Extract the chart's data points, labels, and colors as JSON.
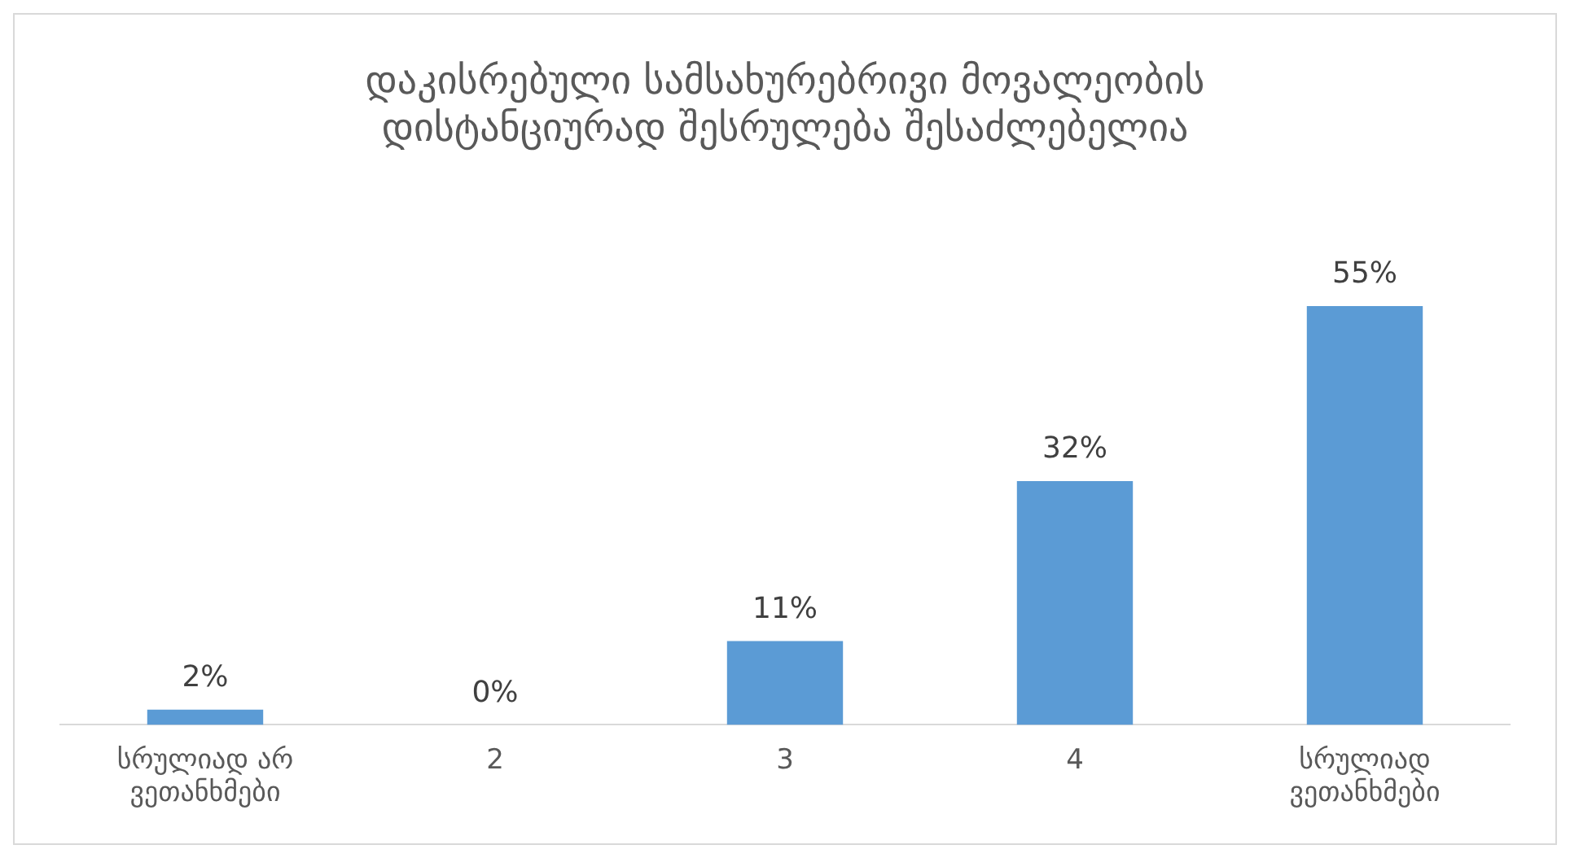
{
  "chart_data": {
    "type": "bar",
    "title": [
      "დაკისრებული სამსახურებრივი მოვალეობის",
      "დისტანციურად შესრულება შესაძლებელია"
    ],
    "categories": [
      "სრულიად არ ვეთანხმები",
      "2",
      "3",
      "4",
      "სრულიად ვეთანხმები"
    ],
    "values": [
      2,
      0,
      11,
      32,
      55
    ],
    "value_labels": [
      "2%",
      "0%",
      "11%",
      "32%",
      "55%"
    ],
    "color": "#5b9bd5",
    "tick_labels": "x",
    "grid": false,
    "legend": false
  }
}
